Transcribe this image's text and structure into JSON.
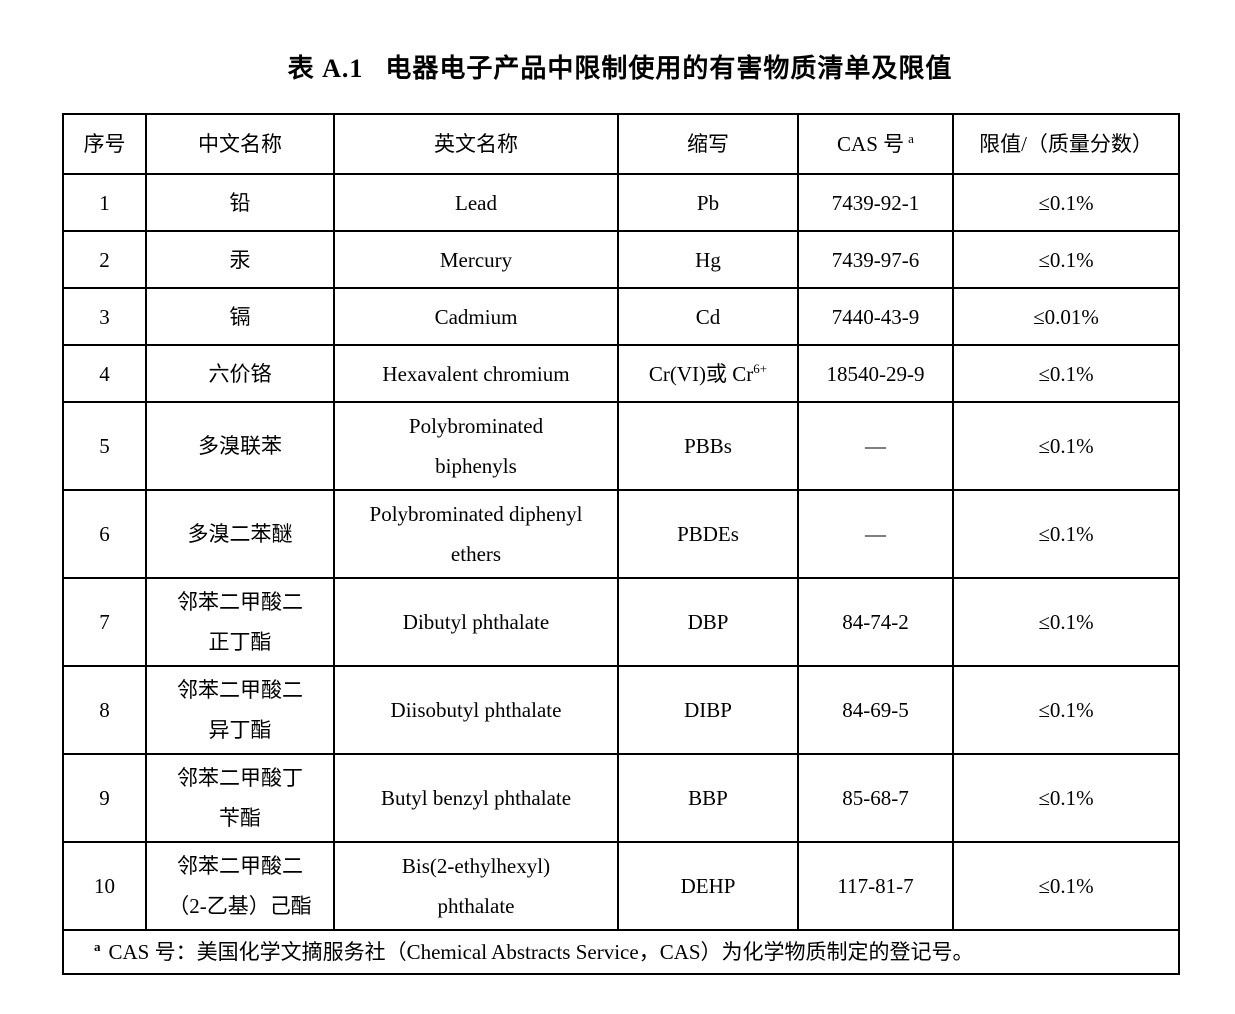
{
  "caption": {
    "label": "表 A.1",
    "text": "电器电子产品中限制使用的有害物质清单及限值"
  },
  "table": {
    "headers": [
      {
        "text": "序号",
        "sup": ""
      },
      {
        "text": "中文名称",
        "sup": ""
      },
      {
        "text": "英文名称",
        "sup": ""
      },
      {
        "text": "缩写",
        "sup": ""
      },
      {
        "text": "CAS 号",
        "sup": "a"
      },
      {
        "text": "限值/（质量分数）",
        "sup": ""
      }
    ],
    "rows": [
      {
        "no": "1",
        "name_zh": [
          "铅"
        ],
        "name_en": [
          "Lead"
        ],
        "abbr": "Pb",
        "abbr_sup": "",
        "cas": "7439-92-1",
        "limit": "≤0.1%"
      },
      {
        "no": "2",
        "name_zh": [
          "汞"
        ],
        "name_en": [
          "Mercury"
        ],
        "abbr": "Hg",
        "abbr_sup": "",
        "cas": "7439-97-6",
        "limit": "≤0.1%"
      },
      {
        "no": "3",
        "name_zh": [
          "镉"
        ],
        "name_en": [
          "Cadmium"
        ],
        "abbr": "Cd",
        "abbr_sup": "",
        "cas": "7440-43-9",
        "limit": "≤0.01%"
      },
      {
        "no": "4",
        "name_zh": [
          "六价铬"
        ],
        "name_en": [
          "Hexavalent chromium"
        ],
        "abbr": "Cr(VI)或 Cr",
        "abbr_sup": "6+",
        "cas": "18540-29-9",
        "limit": "≤0.1%"
      },
      {
        "no": "5",
        "name_zh": [
          "多溴联苯"
        ],
        "name_en": [
          "Polybrominated",
          "biphenyls"
        ],
        "abbr": "PBBs",
        "abbr_sup": "",
        "cas": "—",
        "limit": "≤0.1%"
      },
      {
        "no": "6",
        "name_zh": [
          "多溴二苯醚"
        ],
        "name_en": [
          "Polybrominated diphenyl",
          "ethers"
        ],
        "abbr": "PBDEs",
        "abbr_sup": "",
        "cas": "—",
        "limit": "≤0.1%"
      },
      {
        "no": "7",
        "name_zh": [
          "邻苯二甲酸二",
          "正丁酯"
        ],
        "name_en": [
          "Dibutyl phthalate"
        ],
        "abbr": "DBP",
        "abbr_sup": "",
        "cas": "84-74-2",
        "limit": "≤0.1%"
      },
      {
        "no": "8",
        "name_zh": [
          "邻苯二甲酸二",
          "异丁酯"
        ],
        "name_en": [
          "Diisobutyl phthalate"
        ],
        "abbr": "DIBP",
        "abbr_sup": "",
        "cas": "84-69-5",
        "limit": "≤0.1%"
      },
      {
        "no": "9",
        "name_zh": [
          "邻苯二甲酸丁",
          "苄酯"
        ],
        "name_en": [
          "Butyl benzyl phthalate"
        ],
        "abbr": "BBP",
        "abbr_sup": "",
        "cas": "85-68-7",
        "limit": "≤0.1%"
      },
      {
        "no": "10",
        "name_zh": [
          "邻苯二甲酸二",
          "（2-乙基）己酯"
        ],
        "name_en": [
          "Bis(2-ethylhexyl)",
          "phthalate"
        ],
        "abbr": "DEHP",
        "abbr_sup": "",
        "cas": "117-81-7",
        "limit": "≤0.1%"
      }
    ],
    "footnote": {
      "marker": "a",
      "text": "CAS 号：美国化学文摘服务社（Chemical Abstracts Service，CAS）为化学物质制定的登记号。"
    }
  }
}
